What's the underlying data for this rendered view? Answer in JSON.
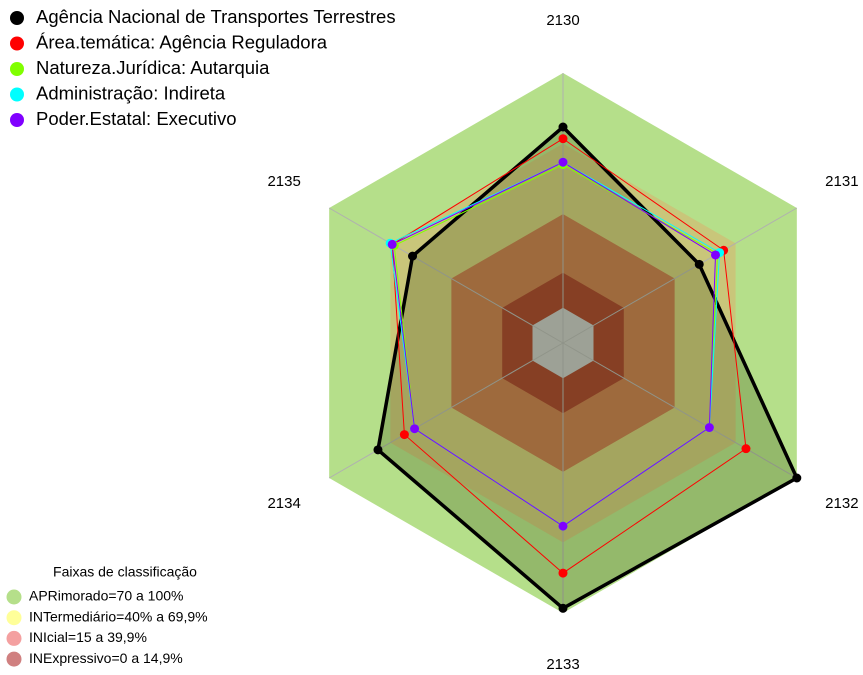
{
  "chart_data": {
    "type": "radar",
    "categories": [
      "2130",
      "2131",
      "2132",
      "2133",
      "2134",
      "2135"
    ],
    "rlim": [
      -15,
      100
    ],
    "series": [
      {
        "name": "Agência Nacional de Transportes Terrestres",
        "color": "#000000",
        "values": [
          77,
          52,
          100,
          98,
          76,
          59
        ]
      },
      {
        "name": "Área.temática: Agência Reguladora",
        "color": "#ff0000",
        "values": [
          72,
          64,
          75,
          83,
          63,
          69
        ]
      },
      {
        "name": "Natureza.Jurídica: Autarquia",
        "color": "#80ff00",
        "values": [
          61,
          61,
          57,
          63,
          58,
          68
        ]
      },
      {
        "name": "Administração: Indireta",
        "color": "#00ffff",
        "values": [
          62,
          62,
          57,
          63,
          58,
          70
        ]
      },
      {
        "name": "Poder.Estatal: Executivo",
        "color": "#8000ff",
        "values": [
          62,
          60,
          57,
          63,
          58,
          69
        ]
      }
    ],
    "bands_title": "Faixas de classificação",
    "bands": [
      {
        "label": "APRimorado=70 a 100%",
        "color": "#b5df8a",
        "legend_color": "#b5df8a",
        "range": [
          70,
          100
        ]
      },
      {
        "label": "INTermediário=40% a 69,9%",
        "color": "#c9c67a",
        "legend_color": "#ffff99",
        "range": [
          40,
          69.9
        ]
      },
      {
        "label": "INIcial=15 a 39,9%",
        "color": "#c27a4f",
        "legend_color": "#f4a0a0",
        "range": [
          15,
          39.9
        ]
      },
      {
        "label": "INExpressivo=0 a 14,9%",
        "color": "#a3432f",
        "legend_color": "#d08080",
        "range": [
          0,
          14.9
        ]
      }
    ],
    "core_color": "#c0c0c0"
  }
}
